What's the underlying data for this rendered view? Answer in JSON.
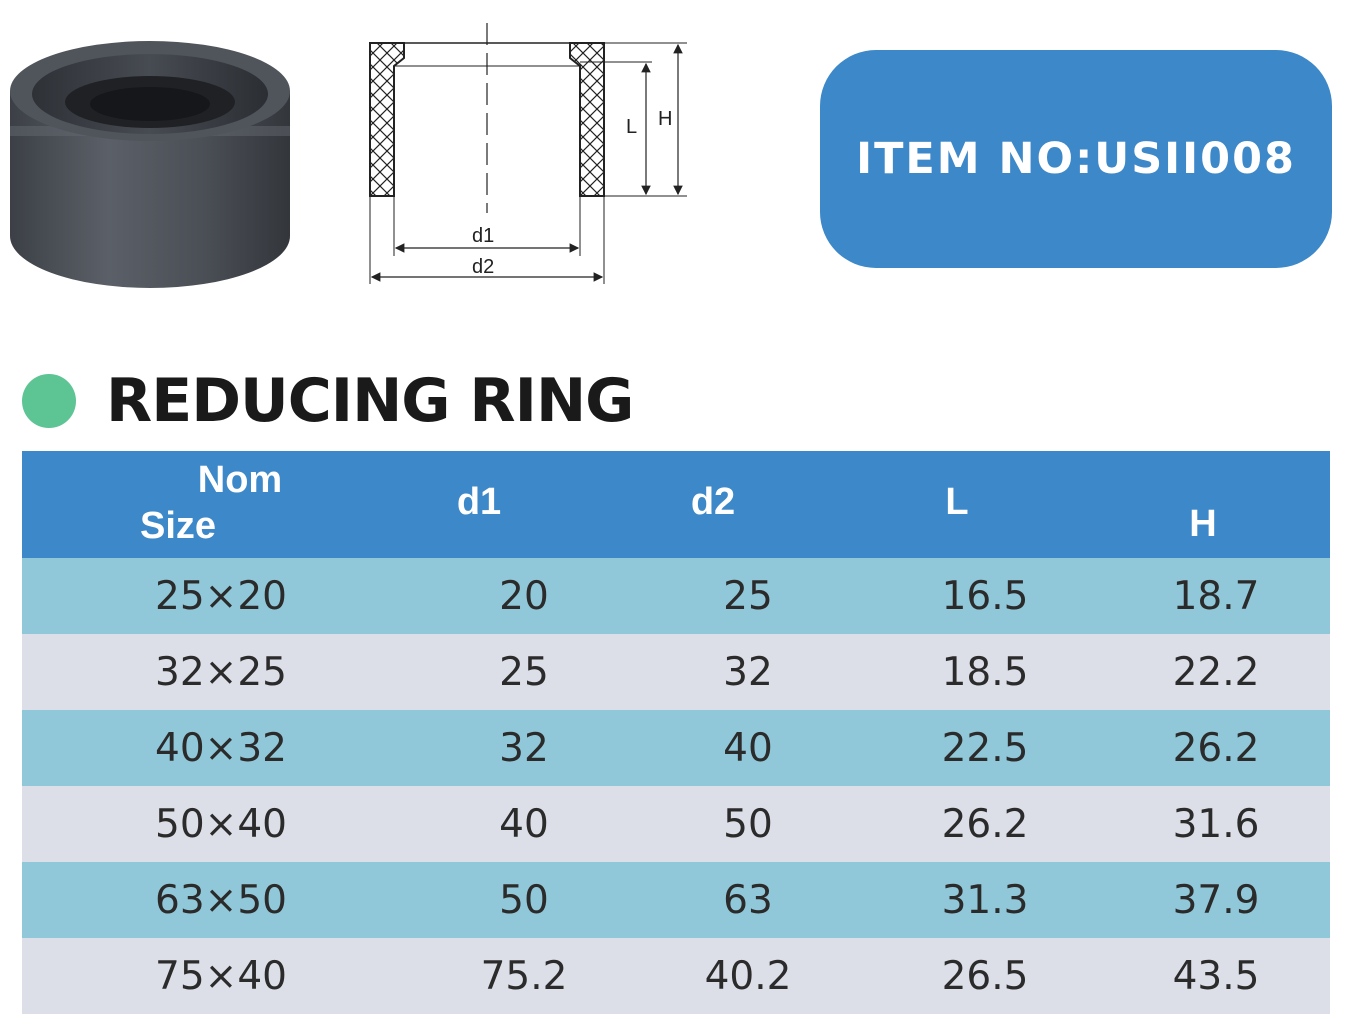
{
  "item_badge": {
    "text": "ITEM NO:USII008"
  },
  "drawing": {
    "labels": {
      "L": "L",
      "H": "H",
      "d1": "d1",
      "d2": "d2"
    }
  },
  "section": {
    "title": "REDUCING RING"
  },
  "table": {
    "headers": {
      "nom_line1": "Nom",
      "nom_line2": "Size",
      "d1": "d1",
      "d2": "d2",
      "L": "L",
      "H": "H"
    },
    "rows": [
      [
        "25×20",
        "20",
        "25",
        "16.5",
        "18.7"
      ],
      [
        "32×25",
        "25",
        "32",
        "18.5",
        "22.2"
      ],
      [
        "40×32",
        "32",
        "40",
        "22.5",
        "26.2"
      ],
      [
        "50×40",
        "40",
        "50",
        "26.2",
        "31.6"
      ],
      [
        "63×50",
        "50",
        "63",
        "31.3",
        "37.9"
      ],
      [
        "75×40",
        "75.2",
        "40.2",
        "26.5",
        "43.5"
      ]
    ]
  },
  "colors": {
    "header_blue": "#3d88c8",
    "row_teal": "#90c8d9",
    "row_grey": "#dcdfe8",
    "accent_green": "#5dc494"
  }
}
